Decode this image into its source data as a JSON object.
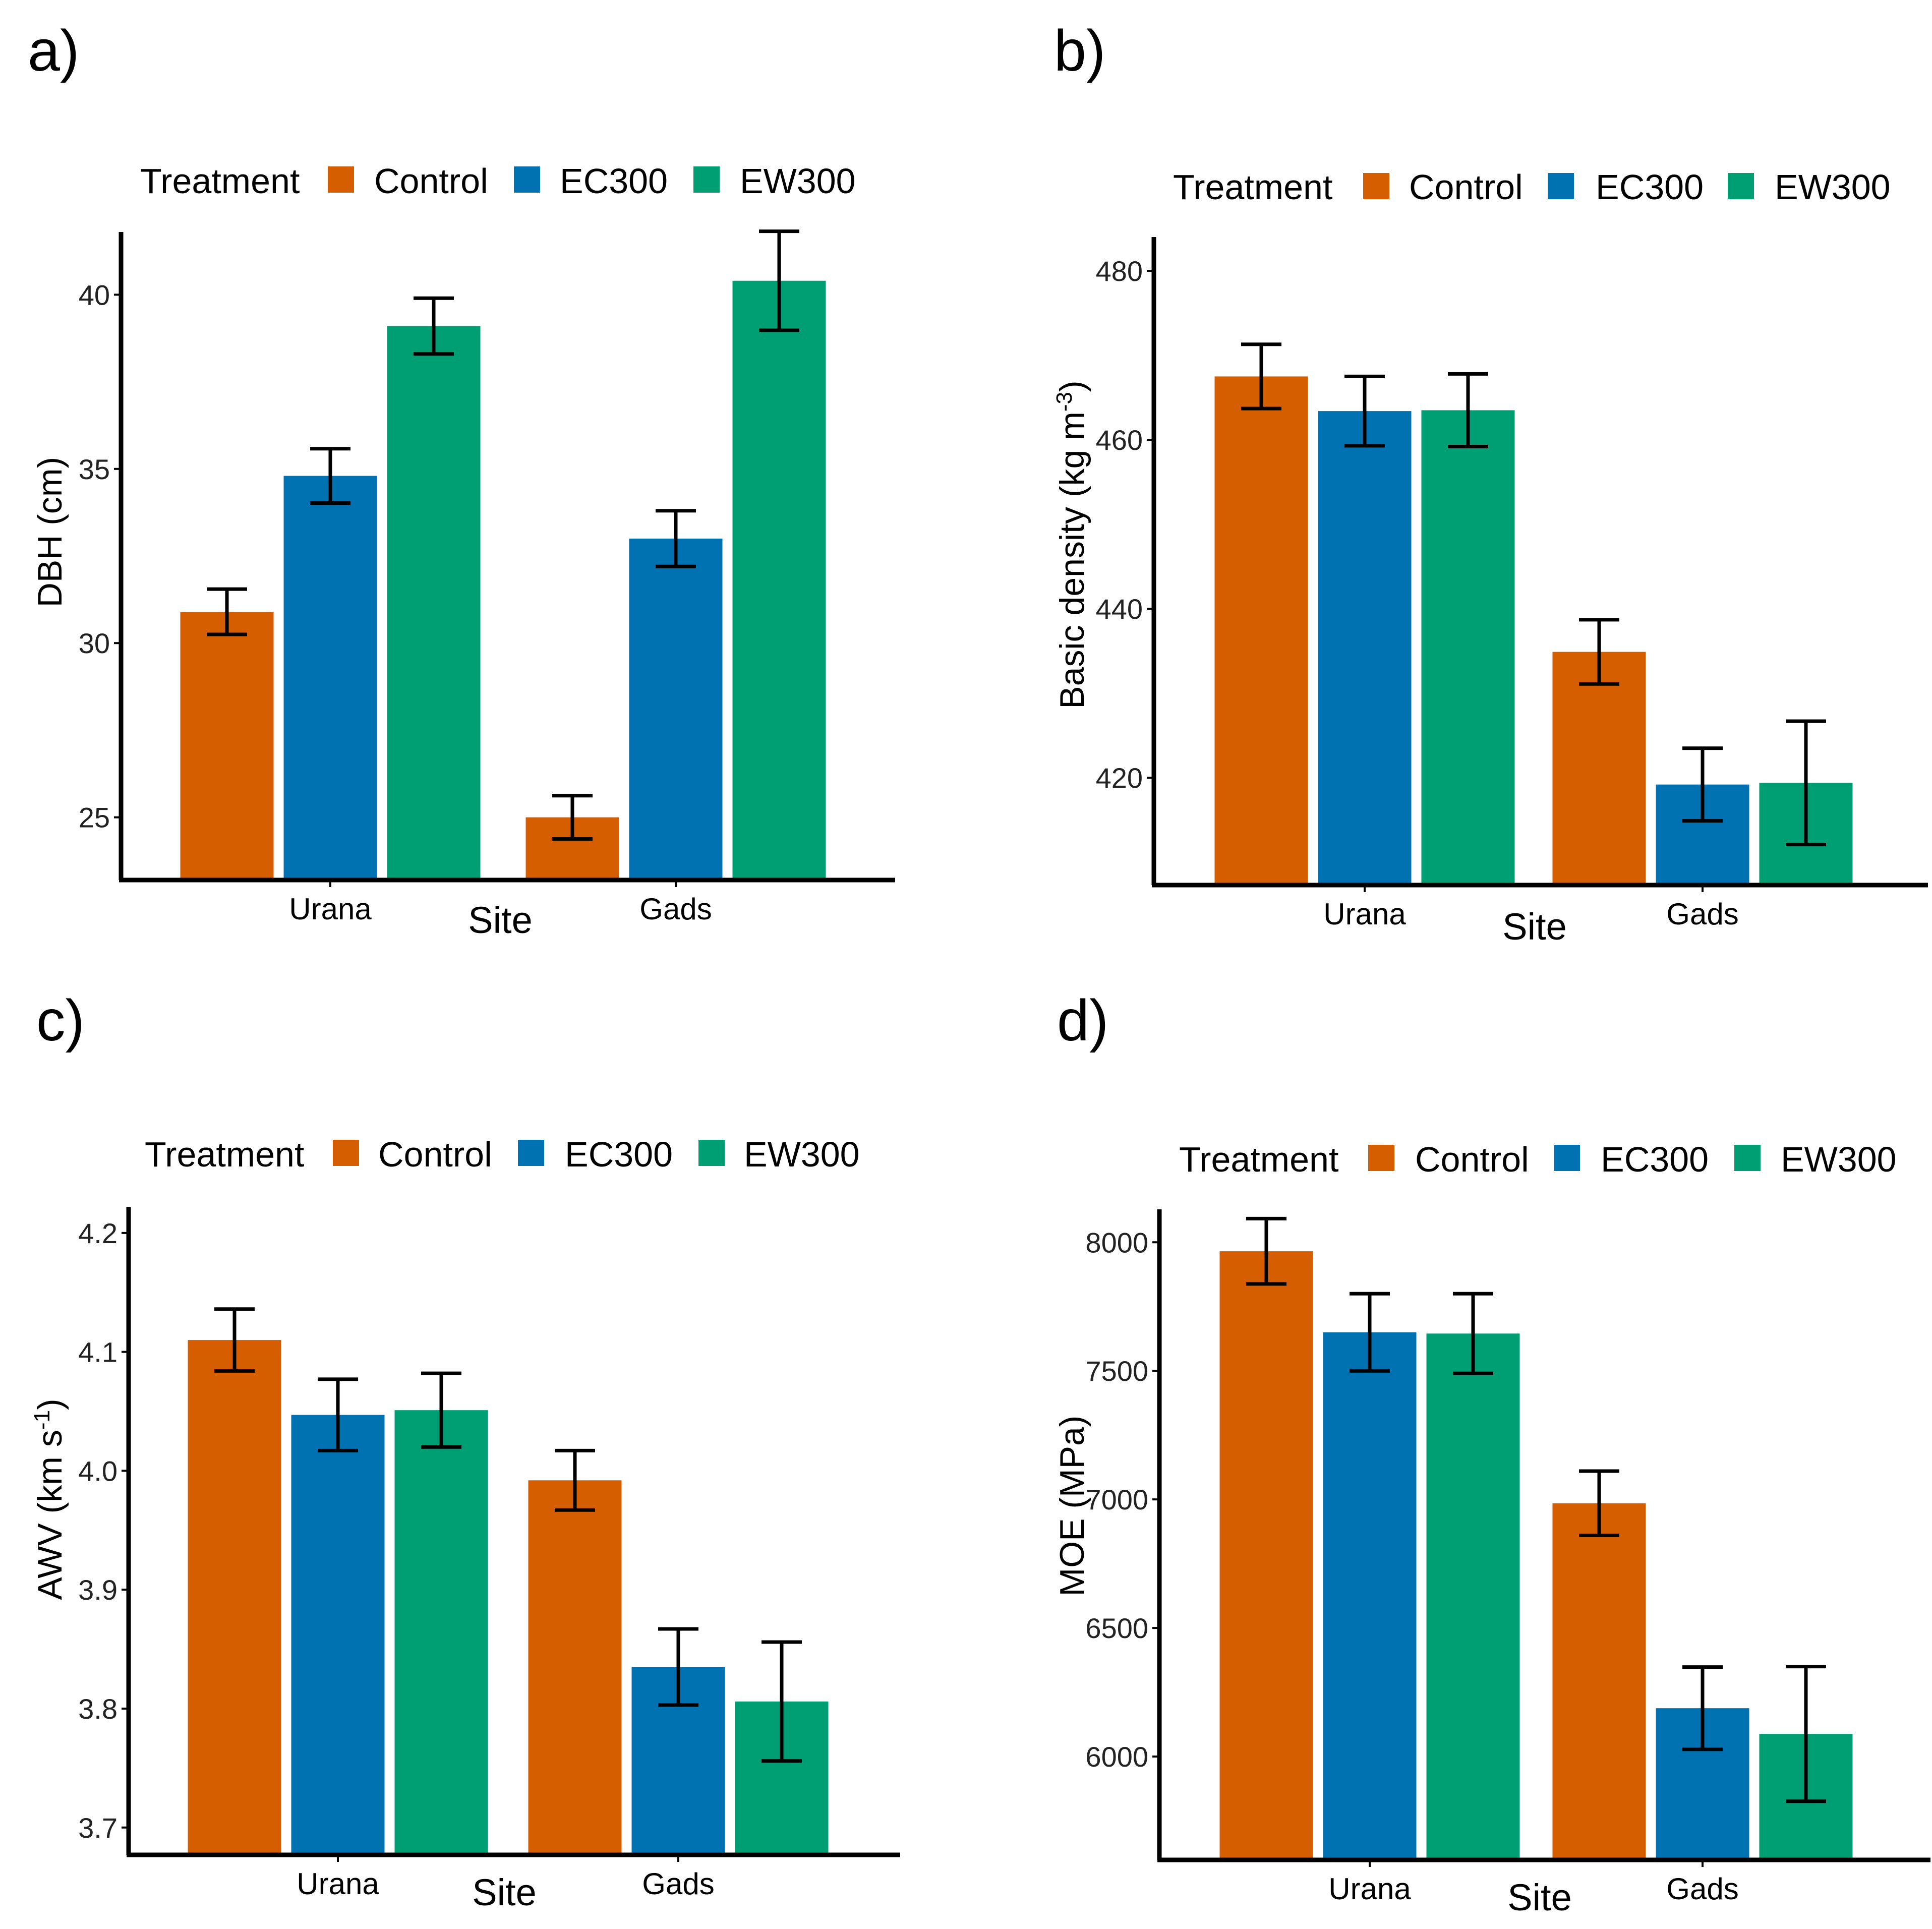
{
  "legend_title": "Treatment",
  "colors": {
    "Control": "#D55E00",
    "EC300": "#0072B2",
    "EW300": "#009E73",
    "axis": "#000000"
  },
  "chart_data": [
    {
      "panel_label": "a)",
      "type": "bar",
      "title": "",
      "xlabel": "Site",
      "ylabel": "DBH (cm)",
      "ylabel_sup": "",
      "ylabel_suffix": "",
      "categories": [
        "Urana",
        "Gads"
      ],
      "legend": [
        "Control",
        "EC300",
        "EW300"
      ],
      "series": [
        {
          "name": "Control",
          "values": [
            30.9,
            25.0
          ],
          "error": [
            0.65,
            0.62
          ]
        },
        {
          "name": "EC300",
          "values": [
            34.8,
            33.0
          ],
          "error": [
            0.78,
            0.8
          ]
        },
        {
          "name": "EW300",
          "values": [
            39.1,
            40.4
          ],
          "error": [
            0.8,
            1.42
          ]
        }
      ],
      "yticks": [
        25,
        30,
        35,
        40
      ],
      "ytick_labels": [
        "25",
        "30",
        "35",
        "40"
      ],
      "ylim": [
        23.2,
        41.8
      ],
      "grid": false,
      "legend_position": "top"
    },
    {
      "panel_label": "b)",
      "type": "bar",
      "title": "",
      "xlabel": "Site",
      "ylabel": "Basic density (kg m",
      "ylabel_sup": "-3",
      "ylabel_suffix": ")",
      "categories": [
        "Urana",
        "Gads"
      ],
      "legend": [
        "Control",
        "EC300",
        "EW300"
      ],
      "series": [
        {
          "name": "Control",
          "values": [
            467.5,
            434.9
          ],
          "error": [
            3.8,
            3.8
          ]
        },
        {
          "name": "EC300",
          "values": [
            463.4,
            419.2
          ],
          "error": [
            4.1,
            4.3
          ]
        },
        {
          "name": "EW300",
          "values": [
            463.5,
            419.4
          ],
          "error": [
            4.3,
            7.3
          ]
        }
      ],
      "yticks": [
        420,
        440,
        460,
        480
      ],
      "ytick_labels": [
        "420",
        "440",
        "460",
        "480"
      ],
      "ylim": [
        407.3,
        484.0
      ],
      "grid": false,
      "legend_position": "top"
    },
    {
      "panel_label": "c)",
      "type": "bar",
      "title": "",
      "xlabel": "Site",
      "ylabel": "AWV (km s",
      "ylabel_sup": "-1",
      "ylabel_suffix": ")",
      "categories": [
        "Urana",
        "Gads"
      ],
      "legend": [
        "Control",
        "EC300",
        "EW300"
      ],
      "series": [
        {
          "name": "Control",
          "values": [
            4.11,
            3.992
          ],
          "error": [
            0.026,
            0.025
          ]
        },
        {
          "name": "EC300",
          "values": [
            4.047,
            3.835
          ],
          "error": [
            0.03,
            0.032
          ]
        },
        {
          "name": "EW300",
          "values": [
            4.051,
            3.806
          ],
          "error": [
            0.031,
            0.05
          ]
        }
      ],
      "yticks": [
        3.7,
        3.8,
        3.9,
        4.0,
        4.1,
        4.2
      ],
      "ytick_labels": [
        "3.7",
        "3.8",
        "3.9",
        "4.0",
        "4.1",
        "4.2"
      ],
      "ylim": [
        3.677,
        4.222
      ],
      "grid": false,
      "legend_position": "top"
    },
    {
      "panel_label": "d)",
      "type": "bar",
      "title": "",
      "xlabel": "Site",
      "ylabel": "MOE (MPa)",
      "ylabel_sup": "",
      "ylabel_suffix": "",
      "categories": [
        "Urana",
        "Gads"
      ],
      "legend": [
        "Control",
        "EC300",
        "EW300"
      ],
      "series": [
        {
          "name": "Control",
          "values": [
            7965,
            6985
          ],
          "error": [
            127,
            125
          ]
        },
        {
          "name": "EC300",
          "values": [
            7650,
            6188
          ],
          "error": [
            150,
            160
          ]
        },
        {
          "name": "EW300",
          "values": [
            7645,
            6088
          ],
          "error": [
            155,
            262
          ]
        }
      ],
      "yticks": [
        6000,
        6500,
        7000,
        7500,
        8000
      ],
      "ytick_labels": [
        "6000",
        "6500",
        "7000",
        "7500",
        "8000"
      ],
      "ylim": [
        5598,
        8128
      ],
      "grid": false,
      "legend_position": "top"
    }
  ]
}
